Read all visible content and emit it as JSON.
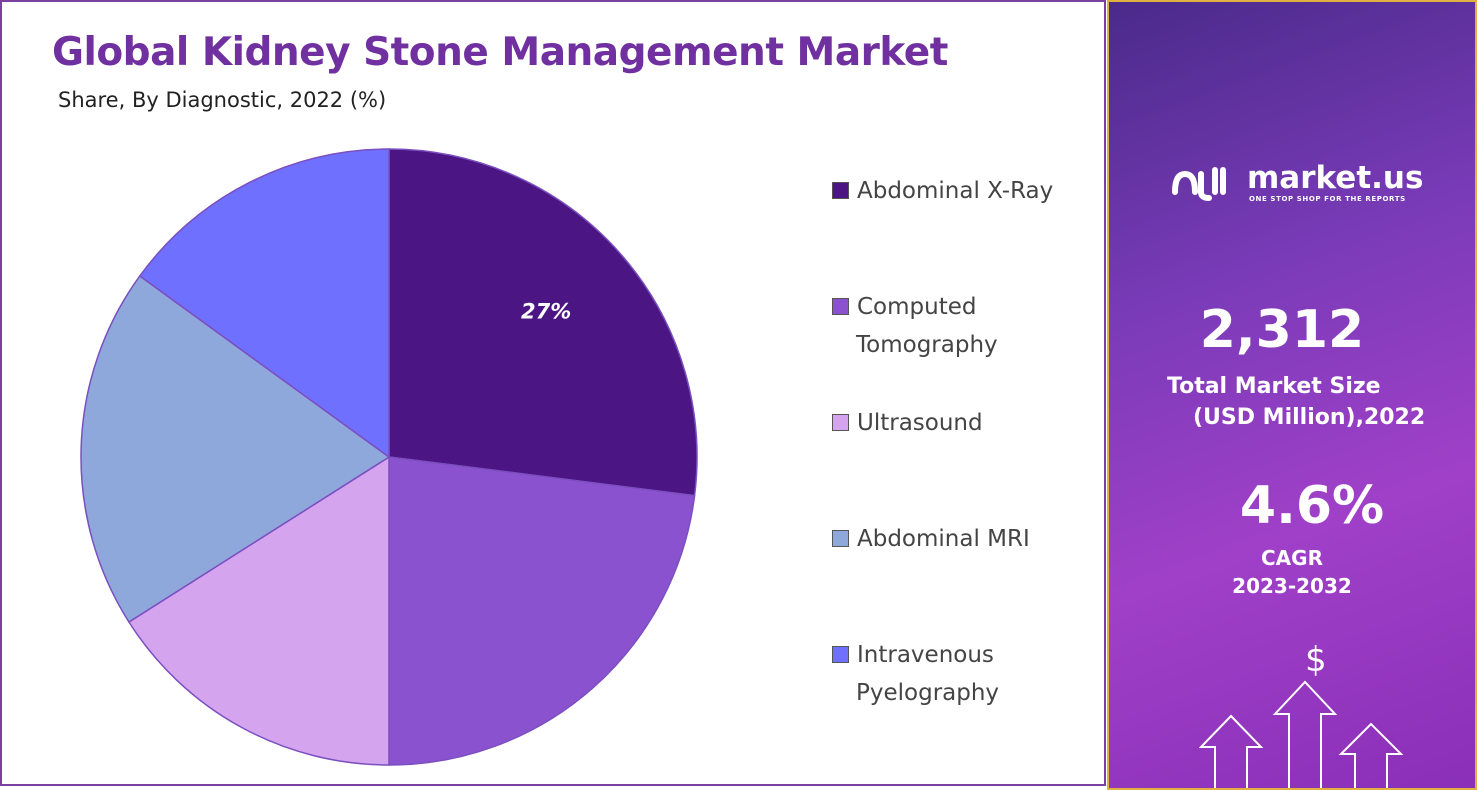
{
  "chart_data": {
    "type": "pie",
    "title": "Global Kidney Stone Management Market",
    "subtitle": "Share, By Diagnostic, 2022 (%)",
    "categories": [
      "Abdominal X-Ray",
      "Computed Tomography",
      "Ultrasound",
      "Abdominal MRI",
      "Intravenous Pyelography"
    ],
    "legend_lines": [
      [
        "Abdominal X-Ray"
      ],
      [
        "Computed",
        "Tomography"
      ],
      [
        "Ultrasound"
      ],
      [
        "Abdominal MRI"
      ],
      [
        "Intravenous",
        "Pyelography"
      ]
    ],
    "values": [
      27,
      23,
      16,
      19,
      15
    ],
    "colors": [
      "#4b1683",
      "#8b52d0",
      "#d4a5ee",
      "#8fa8dc",
      "#7070ff"
    ],
    "data_labels": [
      "27%",
      "",
      "",
      "",
      ""
    ],
    "legend_position": "right"
  },
  "side": {
    "brand": "market.us",
    "tagline": "ONE STOP SHOP FOR THE REPORTS",
    "market_size": "2,312",
    "market_size_label_1": "Total Market Size",
    "market_size_label_2": "(USD Million),2022",
    "cagr": "4.6%",
    "cagr_label": "CAGR",
    "cagr_period": "2023-2032",
    "dollar": "$"
  }
}
